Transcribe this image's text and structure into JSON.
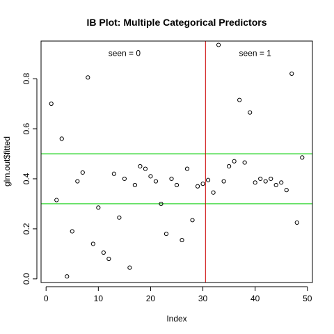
{
  "chart_data": {
    "type": "scatter",
    "title": "IB Plot: Multiple Categorical Predictors",
    "xlabel": "Index",
    "ylabel": "glm.out$fitted",
    "xlim": [
      -0.96,
      50.96
    ],
    "ylim": [
      -0.0144,
      0.9504
    ],
    "x_ticks": [
      0,
      10,
      20,
      30,
      40,
      50
    ],
    "y_ticks": [
      0.0,
      0.2,
      0.4,
      0.6,
      0.8
    ],
    "y_tick_labels": [
      "0.0",
      "0.2",
      "0.4",
      "0.6",
      "0.8"
    ],
    "grid": false,
    "marker": "open-circle",
    "annotations": [
      {
        "text": "seen = 0",
        "x": 15,
        "y": 0.89
      },
      {
        "text": "seen = 1",
        "x": 40,
        "y": 0.89
      }
    ],
    "hlines": [
      {
        "y": 0.5,
        "color": "#00cc00"
      },
      {
        "y": 0.3,
        "color": "#00cc00"
      }
    ],
    "vlines": [
      {
        "x": 30.5,
        "color": "#cc0000"
      }
    ],
    "series": [
      {
        "x": [
          1,
          2,
          3,
          4,
          5,
          6,
          7,
          8,
          9,
          10,
          11,
          12,
          13,
          14,
          15,
          16,
          17,
          18,
          19,
          20,
          21,
          22,
          23,
          24,
          25,
          26,
          27,
          28,
          29,
          30,
          31,
          32,
          33,
          34,
          35,
          36,
          37,
          38,
          39,
          40,
          41,
          42,
          43,
          44,
          45,
          46,
          47,
          48,
          49
        ],
        "y": [
          0.7,
          0.315,
          0.56,
          0.01,
          0.19,
          0.39,
          0.425,
          0.805,
          0.14,
          0.285,
          0.105,
          0.08,
          0.42,
          0.245,
          0.4,
          0.045,
          0.375,
          0.45,
          0.44,
          0.41,
          0.39,
          0.3,
          0.18,
          0.4,
          0.375,
          0.155,
          0.44,
          0.235,
          0.37,
          0.38,
          0.395,
          0.345,
          0.935,
          0.39,
          0.45,
          0.47,
          0.715,
          0.465,
          0.665,
          0.385,
          0.4,
          0.39,
          0.4,
          0.375,
          0.385,
          0.355,
          0.82,
          0.225,
          0.485
        ]
      }
    ]
  }
}
